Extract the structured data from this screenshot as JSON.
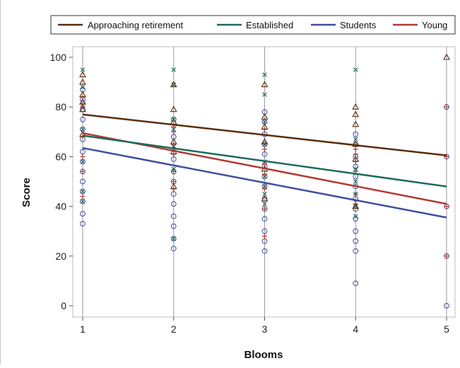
{
  "chart_data": {
    "type": "scatter",
    "xlabel": "Blooms",
    "ylabel": "Score",
    "xlim": [
      1,
      5
    ],
    "ylim": [
      0,
      100
    ],
    "x_ticks": [
      1,
      2,
      3,
      4,
      5
    ],
    "y_ticks": [
      0,
      20,
      40,
      60,
      80,
      100
    ],
    "grid": "vertical lines at x ticks",
    "legend_placement": "top",
    "series": [
      {
        "name": "Approaching retirement",
        "color": "#5a2d0c",
        "marker": "triangle",
        "trend": [
          [
            1,
            77
          ],
          [
            5,
            60.5
          ]
        ],
        "points": [
          [
            1,
            93
          ],
          [
            1,
            90
          ],
          [
            1,
            85
          ],
          [
            1,
            82
          ],
          [
            1,
            79
          ],
          [
            1,
            69
          ],
          [
            2,
            89
          ],
          [
            2,
            79
          ],
          [
            2,
            74
          ],
          [
            2,
            66
          ],
          [
            2,
            62
          ],
          [
            2,
            48
          ],
          [
            3,
            89
          ],
          [
            3,
            76
          ],
          [
            3,
            72
          ],
          [
            3,
            66
          ],
          [
            3,
            55
          ],
          [
            3,
            43
          ],
          [
            4,
            80
          ],
          [
            4,
            77
          ],
          [
            4,
            73
          ],
          [
            4,
            65
          ],
          [
            4,
            59
          ],
          [
            4,
            40
          ],
          [
            5,
            100
          ]
        ]
      },
      {
        "name": "Established",
        "color": "#1a6b5a",
        "marker": "x",
        "trend": [
          [
            1,
            68.5
          ],
          [
            5,
            48
          ]
        ],
        "points": [
          [
            1,
            95
          ],
          [
            1,
            88
          ],
          [
            1,
            81
          ],
          [
            1,
            71
          ],
          [
            1,
            58
          ],
          [
            1,
            46
          ],
          [
            1,
            42
          ],
          [
            2,
            95
          ],
          [
            2,
            89
          ],
          [
            2,
            75
          ],
          [
            2,
            71
          ],
          [
            2,
            64
          ],
          [
            2,
            55
          ],
          [
            2,
            27
          ],
          [
            3,
            93
          ],
          [
            3,
            85
          ],
          [
            3,
            74
          ],
          [
            3,
            65
          ],
          [
            3,
            58
          ],
          [
            3,
            52
          ],
          [
            3,
            48
          ],
          [
            3,
            45
          ],
          [
            3,
            41
          ],
          [
            4,
            95
          ],
          [
            4,
            67
          ],
          [
            4,
            55
          ],
          [
            4,
            50
          ],
          [
            4,
            45
          ],
          [
            4,
            40
          ],
          [
            4,
            36
          ]
        ]
      },
      {
        "name": "Students",
        "color": "#3f4f9e",
        "marker": "circle",
        "trend": [
          [
            1,
            63.5
          ],
          [
            5,
            35.5
          ]
        ],
        "points": [
          [
            1,
            87
          ],
          [
            1,
            83
          ],
          [
            1,
            79
          ],
          [
            1,
            75
          ],
          [
            1,
            71
          ],
          [
            1,
            67
          ],
          [
            1,
            62
          ],
          [
            1,
            58
          ],
          [
            1,
            54
          ],
          [
            1,
            50
          ],
          [
            1,
            46
          ],
          [
            1,
            42
          ],
          [
            1,
            37
          ],
          [
            1,
            33
          ],
          [
            2,
            75
          ],
          [
            2,
            68
          ],
          [
            2,
            63
          ],
          [
            2,
            59
          ],
          [
            2,
            54
          ],
          [
            2,
            50
          ],
          [
            2,
            45
          ],
          [
            2,
            41
          ],
          [
            2,
            36
          ],
          [
            2,
            32
          ],
          [
            2,
            27
          ],
          [
            2,
            23
          ],
          [
            3,
            78
          ],
          [
            3,
            74
          ],
          [
            3,
            69
          ],
          [
            3,
            65
          ],
          [
            3,
            61
          ],
          [
            3,
            56
          ],
          [
            3,
            52
          ],
          [
            3,
            48
          ],
          [
            3,
            43
          ],
          [
            3,
            39
          ],
          [
            3,
            35
          ],
          [
            3,
            30
          ],
          [
            3,
            26
          ],
          [
            3,
            22
          ],
          [
            4,
            69
          ],
          [
            4,
            65
          ],
          [
            4,
            60
          ],
          [
            4,
            56
          ],
          [
            4,
            52
          ],
          [
            4,
            48
          ],
          [
            4,
            43
          ],
          [
            4,
            39
          ],
          [
            4,
            35
          ],
          [
            4,
            30
          ],
          [
            4,
            26
          ],
          [
            4,
            22
          ],
          [
            4,
            9
          ],
          [
            5,
            80
          ],
          [
            5,
            60
          ],
          [
            5,
            40
          ],
          [
            5,
            20
          ],
          [
            5,
            0
          ]
        ]
      },
      {
        "name": "Young",
        "color": "#b23a32",
        "marker": "plus",
        "trend": [
          [
            1,
            69.5
          ],
          [
            5,
            41
          ]
        ],
        "points": [
          [
            1,
            84
          ],
          [
            1,
            80
          ],
          [
            1,
            68
          ],
          [
            1,
            60
          ],
          [
            1,
            54
          ],
          [
            1,
            44
          ],
          [
            2,
            72
          ],
          [
            2,
            70
          ],
          [
            2,
            65
          ],
          [
            2,
            61
          ],
          [
            2,
            54
          ],
          [
            2,
            50
          ],
          [
            2,
            47
          ],
          [
            3,
            71
          ],
          [
            3,
            63
          ],
          [
            3,
            57
          ],
          [
            3,
            53
          ],
          [
            3,
            47
          ],
          [
            3,
            39
          ],
          [
            3,
            28
          ],
          [
            4,
            63
          ],
          [
            4,
            61
          ],
          [
            4,
            58
          ],
          [
            4,
            54
          ],
          [
            4,
            45
          ],
          [
            4,
            41
          ],
          [
            5,
            80
          ],
          [
            5,
            60
          ],
          [
            5,
            40
          ],
          [
            5,
            20
          ]
        ]
      }
    ]
  }
}
